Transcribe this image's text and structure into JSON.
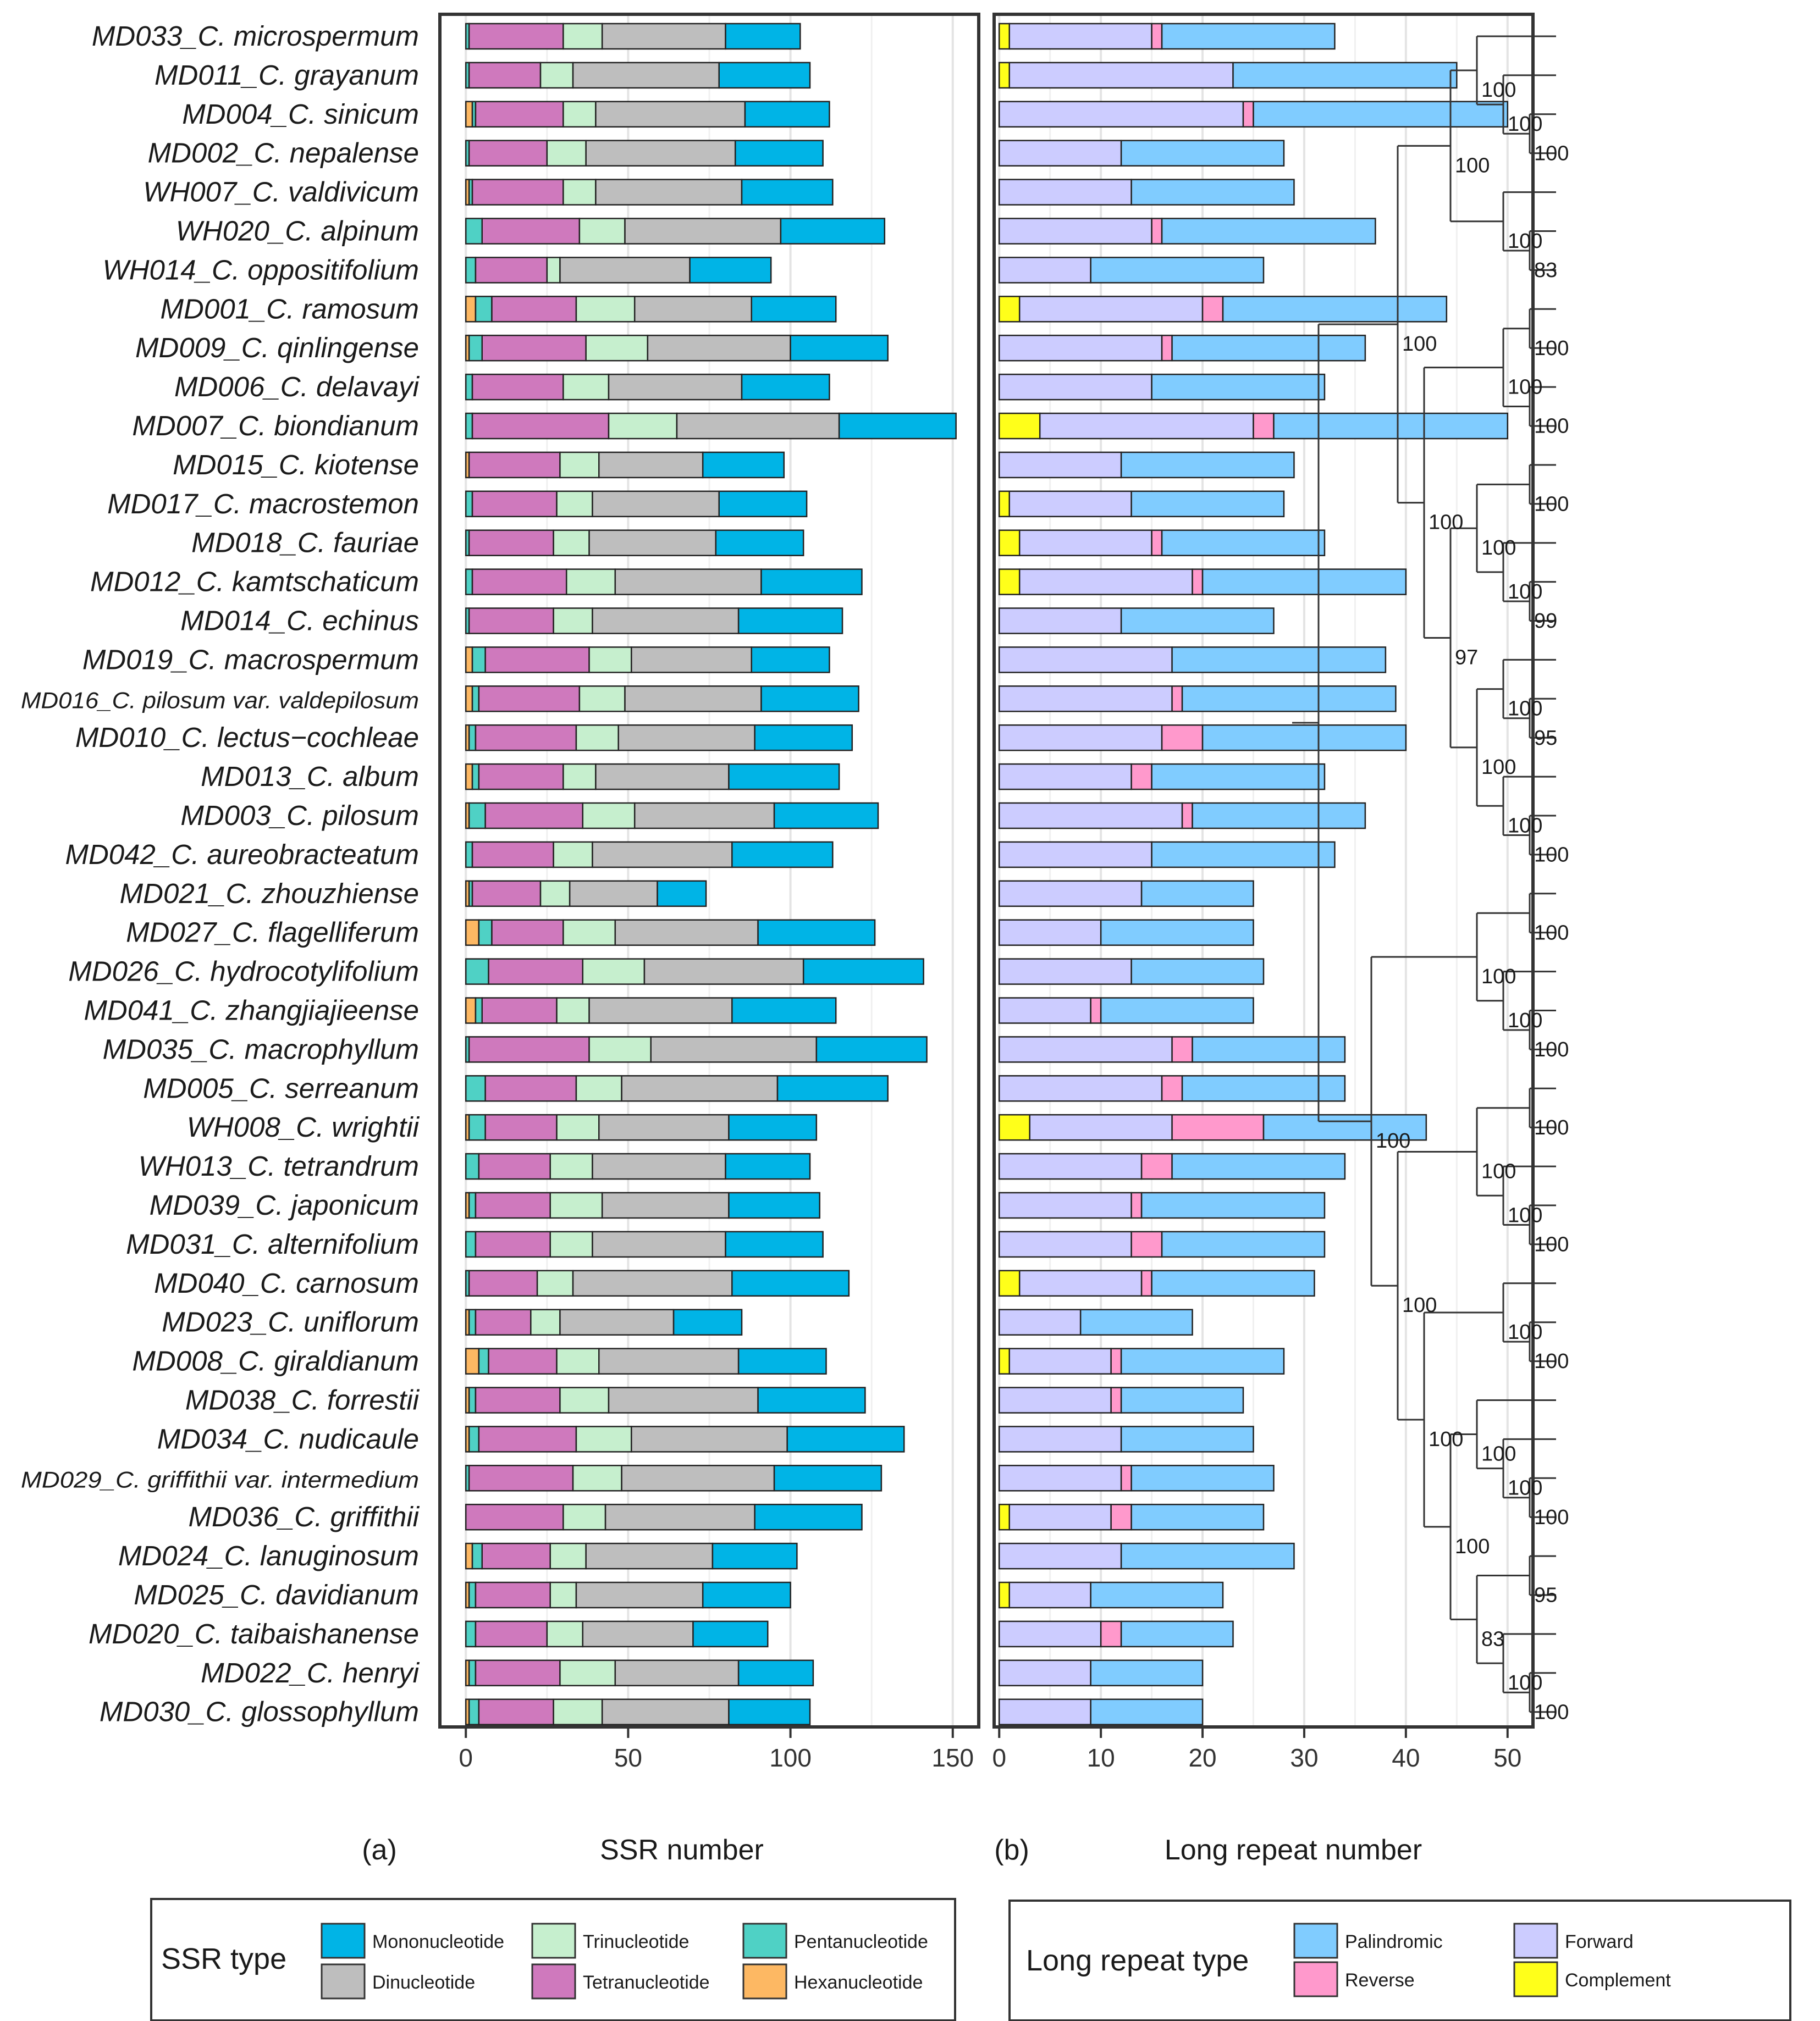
{
  "chart_data": [
    {
      "panel": "a",
      "type": "bar",
      "stacked": true,
      "orientation": "horizontal",
      "panel_label": "(a)",
      "xlabel": "SSR number",
      "xlim": [
        -8,
        158
      ],
      "ticks": [
        0,
        50,
        100,
        150
      ],
      "tick_labels": [
        "0",
        "50",
        "100",
        "150"
      ],
      "grid": true,
      "categories": [
        "MD033_C. microspermum",
        "MD011_C. grayanum",
        "MD004_C. sinicum",
        "MD002_C. nepalense",
        "WH007_C. valdivicum",
        "WH020_C. alpinum",
        "WH014_C. oppositifolium",
        "MD001_C. ramosum",
        "MD009_C. qinlingense",
        "MD006_C. delavayi",
        "MD007_C. biondianum",
        "MD015_C. kiotense",
        "MD017_C. macrostemon",
        "MD018_C. fauriae",
        "MD012_C. kamtschaticum",
        "MD014_C. echinus",
        "MD019_C. macrospermum",
        "MD016_C. pilosum var. valdepilosum",
        "MD010_C. lectus−cochleae",
        "MD013_C. album",
        "MD003_C. pilosum",
        "MD042_C. aureobracteatum",
        "MD021_C. zhouzhiense",
        "MD027_C. flagelliferum",
        "MD026_C. hydrocotylifolium",
        "MD041_C. zhangjiajieense",
        "MD035_C. macrophyllum",
        "MD005_C. serreanum",
        "WH008_C. wrightii",
        "WH013_C. tetrandrum",
        "MD039_C. japonicum",
        "MD031_C. alternifolium",
        "MD040_C. carnosum",
        "MD023_C. uniflorum ",
        "MD008_C. giraldianum",
        "MD038_C. forrestii",
        "MD034_C. nudicaule",
        "MD029_C. griffithii var. intermedium",
        "MD036_C. griffithii",
        "MD024_C. lanuginosum",
        "MD025_C. davidianum",
        "MD020_C. taibaishanense",
        "MD022_C. henryi",
        "MD030_C. glossophyllum"
      ],
      "series": [
        {
          "name": "Hexanucleotide",
          "color": "#FDB863",
          "values": [
            0,
            0,
            2,
            0,
            1,
            0,
            0,
            3,
            1,
            0,
            0,
            1,
            0,
            0,
            0,
            0,
            2,
            2,
            1,
            2,
            1,
            0,
            1,
            4,
            0,
            3,
            0,
            0,
            1,
            0,
            1,
            0,
            0,
            1,
            4,
            1,
            1,
            0,
            0,
            2,
            1,
            0,
            1,
            1
          ]
        },
        {
          "name": "Pentanucleotide",
          "color": "#4FD1C5",
          "values": [
            1,
            1,
            1,
            1,
            1,
            5,
            3,
            5,
            4,
            2,
            2,
            0,
            2,
            1,
            2,
            1,
            4,
            2,
            2,
            2,
            5,
            2,
            1,
            4,
            7,
            2,
            1,
            6,
            5,
            4,
            2,
            3,
            1,
            2,
            3,
            2,
            3,
            1,
            0,
            3,
            2,
            3,
            2,
            3
          ]
        },
        {
          "name": "Tetranucleotide",
          "color": "#CF79BD",
          "values": [
            29,
            22,
            27,
            24,
            28,
            30,
            22,
            26,
            32,
            28,
            42,
            28,
            26,
            26,
            29,
            26,
            32,
            31,
            31,
            26,
            30,
            25,
            21,
            22,
            29,
            23,
            37,
            28,
            22,
            22,
            23,
            23,
            21,
            17,
            21,
            26,
            30,
            32,
            30,
            21,
            23,
            22,
            26,
            23
          ]
        },
        {
          "name": "Trinucleotide",
          "color": "#C6EFCE",
          "values": [
            12,
            10,
            10,
            12,
            10,
            14,
            4,
            18,
            19,
            14,
            21,
            12,
            11,
            11,
            15,
            12,
            13,
            14,
            13,
            10,
            16,
            12,
            9,
            16,
            19,
            10,
            19,
            14,
            13,
            13,
            16,
            13,
            11,
            9,
            13,
            15,
            17,
            15,
            13,
            11,
            8,
            11,
            17,
            15
          ]
        },
        {
          "name": "Dinucleotide",
          "color": "#BEBEBE",
          "values": [
            38,
            45,
            46,
            46,
            45,
            48,
            40,
            36,
            44,
            41,
            50,
            32,
            39,
            39,
            45,
            45,
            37,
            42,
            42,
            41,
            43,
            43,
            27,
            44,
            49,
            44,
            51,
            48,
            40,
            41,
            39,
            41,
            49,
            35,
            43,
            46,
            48,
            47,
            46,
            39,
            39,
            34,
            38,
            39
          ]
        },
        {
          "name": "Mononucleotide",
          "color": "#00B4E6",
          "values": [
            23,
            28,
            26,
            27,
            28,
            32,
            25,
            26,
            30,
            27,
            36,
            25,
            27,
            27,
            31,
            32,
            24,
            30,
            30,
            34,
            32,
            31,
            15,
            36,
            37,
            32,
            34,
            34,
            27,
            26,
            28,
            30,
            36,
            21,
            27,
            33,
            36,
            33,
            33,
            26,
            27,
            23,
            23,
            25
          ]
        }
      ],
      "legend": {
        "title": "SSR type",
        "items": [
          {
            "label": "Mononucleotide",
            "color": "#00B4E6"
          },
          {
            "label": "Dinucleotide",
            "color": "#BEBEBE"
          },
          {
            "label": "Trinucleotide",
            "color": "#C6EFCE"
          },
          {
            "label": "Tetranucleotide",
            "color": "#CF79BD"
          },
          {
            "label": "Pentanucleotide",
            "color": "#4FD1C5"
          },
          {
            "label": "Hexanucleotide",
            "color": "#FDB863"
          }
        ]
      }
    },
    {
      "panel": "b",
      "type": "bar",
      "stacked": true,
      "orientation": "horizontal",
      "panel_label": "(b)",
      "xlabel": "Long repeat number",
      "xlim": [
        -0.5,
        52.5
      ],
      "ticks": [
        0,
        10,
        20,
        30,
        40,
        50
      ],
      "tick_labels": [
        "0",
        "10",
        "20",
        "30",
        "40",
        "50"
      ],
      "grid": true,
      "series": [
        {
          "name": "Complement",
          "color": "#FFFF1A",
          "values": [
            1,
            1,
            0,
            0,
            0,
            0,
            0,
            2,
            0,
            0,
            4,
            0,
            1,
            2,
            2,
            0,
            0,
            0,
            0,
            0,
            0,
            0,
            0,
            0,
            0,
            0,
            0,
            0,
            3,
            0,
            0,
            0,
            2,
            0,
            1,
            0,
            0,
            0,
            1,
            0,
            1,
            0,
            0,
            0
          ]
        },
        {
          "name": "Forward",
          "color": "#CCCCFF",
          "values": [
            14,
            22,
            24,
            12,
            13,
            15,
            9,
            18,
            16,
            15,
            21,
            12,
            12,
            13,
            17,
            12,
            17,
            17,
            16,
            13,
            18,
            15,
            14,
            10,
            13,
            9,
            17,
            16,
            14,
            14,
            13,
            13,
            12,
            8,
            10,
            11,
            12,
            12,
            10,
            12,
            8,
            10,
            9,
            9
          ]
        },
        {
          "name": "Reverse",
          "color": "#FF99CC",
          "values": [
            1,
            0,
            1,
            0,
            0,
            1,
            0,
            2,
            1,
            0,
            2,
            0,
            0,
            1,
            1,
            0,
            0,
            1,
            4,
            2,
            1,
            0,
            0,
            0,
            0,
            1,
            2,
            2,
            9,
            3,
            1,
            3,
            1,
            0,
            1,
            1,
            0,
            1,
            2,
            0,
            0,
            2,
            0,
            0
          ]
        },
        {
          "name": "Palindromic",
          "color": "#80CCFF",
          "values": [
            17,
            22,
            25,
            16,
            16,
            21,
            17,
            22,
            19,
            17,
            23,
            17,
            15,
            16,
            20,
            15,
            21,
            21,
            20,
            17,
            17,
            18,
            11,
            15,
            13,
            15,
            15,
            16,
            16,
            17,
            18,
            16,
            16,
            11,
            16,
            12,
            13,
            14,
            13,
            17,
            13,
            11,
            11,
            11
          ]
        }
      ],
      "legend": {
        "title": "Long repeat type",
        "items": [
          {
            "label": "Palindromic",
            "color": "#80CCFF"
          },
          {
            "label": "Reverse",
            "color": "#FF99CC"
          },
          {
            "label": "Forward",
            "color": "#CCCCFF"
          },
          {
            "label": "Complement",
            "color": "#FFFF1A"
          }
        ]
      }
    }
  ],
  "tree": {
    "newick": "(((((MD033,(MD011,(MD004,MD002)100)100)100,(WH007,(WH020,WH014)100)83)100,(((MD001,MD009)100,(MD006,MD007)100)100,(((MD015,MD017)100,(MD018,(MD012,MD014)95)100)100,((MD019,(MD016,MD010)100)100,(MD013,(MD003,MD042)100)97)100)100)99)100,((((MD021,MD027)100,(MD026,(MD041,MD035)100)100)100,(((MD005,WH008)100,(WH013,(MD039,MD031)100)100)100,((MD040,(MD023,MD008)100)100,((MD038,(MD034,(MD029,MD036)100)95)100,((MD024,MD025)83,(MD020,(MD022,MD030)100)100)100)100)100)100)100);",
    "bootstrap_labels": [
      "100",
      "100",
      "100",
      "83",
      "100",
      "100",
      "100",
      "100",
      "100",
      "100",
      "99",
      "100",
      "100",
      "95",
      "100",
      "100",
      "100",
      "100",
      "97",
      "100",
      "100",
      "100",
      "100",
      "100",
      "100",
      "100",
      "100",
      "100",
      "100",
      "100",
      "100",
      "100",
      "100",
      "100",
      "95",
      "100",
      "100",
      "83",
      "100",
      "100",
      "100"
    ]
  }
}
